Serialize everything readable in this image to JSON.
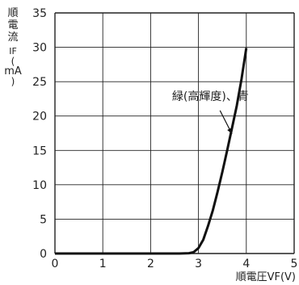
{
  "chart_data": {
    "type": "line",
    "xlabel": "順電圧VF(V)",
    "ylabel": {
      "chars": [
        "順",
        "電",
        "流"
      ],
      "symbol": "IF",
      "paren_open": "(",
      "unit": "mA",
      "paren_close": ")"
    },
    "xlim": [
      0,
      5
    ],
    "ylim": [
      0,
      35
    ],
    "xticks": [
      0,
      1,
      2,
      3,
      4,
      5
    ],
    "yticks": [
      0,
      5,
      10,
      15,
      20,
      25,
      30,
      35
    ],
    "grid": true,
    "series": [
      {
        "name": "緑(高輝度)、青",
        "color": "#111111",
        "points": [
          [
            0,
            0
          ],
          [
            2.6,
            0
          ],
          [
            2.8,
            0.05
          ],
          [
            2.9,
            0.2
          ],
          [
            3.0,
            0.8
          ],
          [
            3.1,
            2.0
          ],
          [
            3.2,
            4.0
          ],
          [
            3.3,
            6.3
          ],
          [
            3.4,
            9.0
          ],
          [
            3.5,
            11.9
          ],
          [
            3.6,
            15.0
          ],
          [
            3.7,
            18.2
          ],
          [
            3.8,
            21.5
          ],
          [
            3.9,
            25.4
          ],
          [
            4.0,
            29.9
          ]
        ]
      }
    ],
    "annotation": {
      "text": "緑(高輝度)、青",
      "x": 3.25,
      "y": 22.3,
      "arrow_from": [
        3.45,
        20.8
      ],
      "arrow_to": [
        3.7,
        17.4
      ]
    }
  }
}
